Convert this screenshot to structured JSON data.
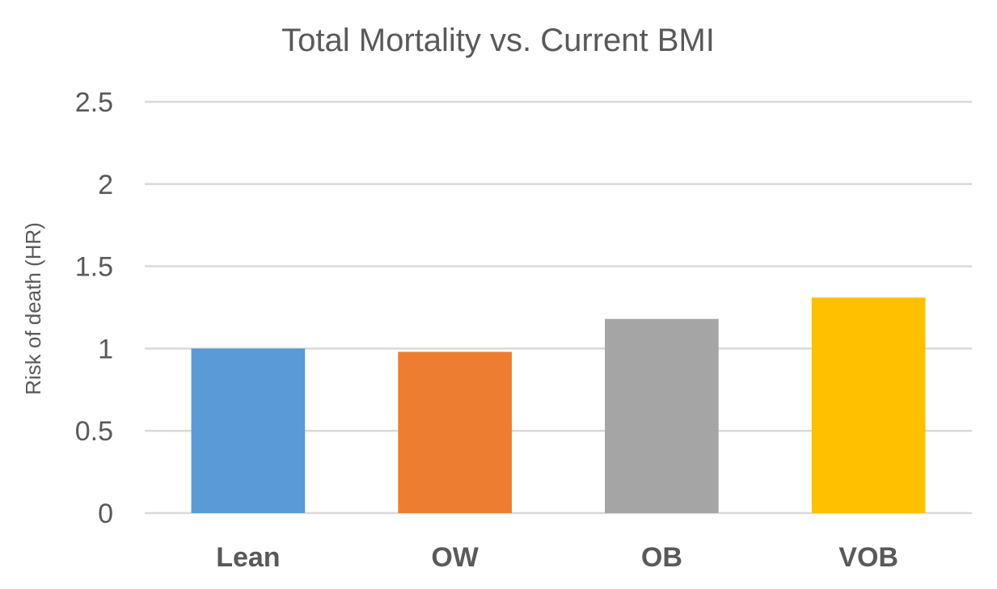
{
  "chart_data": {
    "type": "bar",
    "title": "Total Mortality vs. Current BMI",
    "xlabel": "",
    "ylabel": "Risk of death (HR)",
    "categories": [
      "Lean",
      "OW",
      "OB",
      "VOB"
    ],
    "values": [
      1.0,
      0.98,
      1.18,
      1.31
    ],
    "colors": [
      "#5b9bd5",
      "#ed7d31",
      "#a5a5a5",
      "#ffc000"
    ],
    "ylim": [
      0,
      2.5
    ],
    "yticks": [
      {
        "value": 0,
        "label": "0"
      },
      {
        "value": 0.5,
        "label": "0.5"
      },
      {
        "value": 1,
        "label": "1"
      },
      {
        "value": 1.5,
        "label": "1.5"
      },
      {
        "value": 2,
        "label": "2"
      },
      {
        "value": 2.5,
        "label": "2.5"
      }
    ],
    "grid": true,
    "gridline_color": "#d9d9d9",
    "text_color": "#595959"
  }
}
